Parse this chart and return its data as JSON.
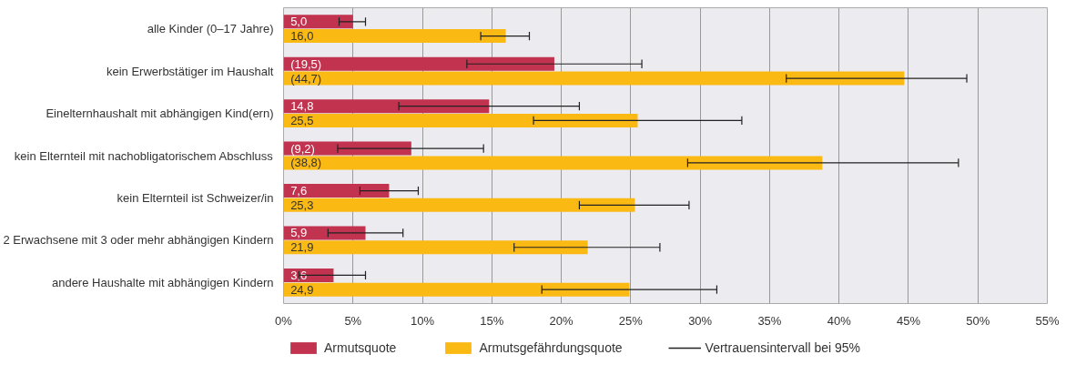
{
  "chart_data": {
    "type": "bar",
    "orientation": "horizontal",
    "categories": [
      "alle Kinder (0–17 Jahre)",
      "kein Erwerbstätiger im Haushalt",
      "Einelternhaushalt mit abhängigen Kind(ern)",
      "kein Elternteil mit nachobligatorischem Abschluss",
      "kein Elternteil ist Schweizer/in",
      "2 Erwachsene mit 3 oder mehr abhängigen Kindern",
      "andere Haushalte mit abhängigen Kindern"
    ],
    "series": [
      {
        "name": "Armutsquote",
        "color": "#c1334f",
        "values": [
          5.0,
          19.5,
          14.8,
          9.2,
          7.6,
          5.9,
          3.6
        ],
        "value_labels": [
          "5,0",
          "(19,5)",
          "14,8",
          "(9,2)",
          "7,6",
          "5,9",
          "3,6"
        ],
        "errors": [
          [
            4.0,
            5.9
          ],
          [
            13.2,
            25.8
          ],
          [
            8.3,
            21.3
          ],
          [
            3.9,
            14.4
          ],
          [
            5.5,
            9.7
          ],
          [
            3.2,
            8.6
          ],
          [
            1.1,
            5.9
          ]
        ]
      },
      {
        "name": "Armutsgefährdungsquote",
        "color": "#fbb914",
        "values": [
          16.0,
          44.7,
          25.5,
          38.8,
          25.3,
          21.9,
          24.9
        ],
        "value_labels": [
          "16,0",
          "(44,7)",
          "25,5",
          "(38,8)",
          "25,3",
          "21,9",
          "24,9"
        ],
        "errors": [
          [
            14.2,
            17.7
          ],
          [
            36.2,
            49.2
          ],
          [
            18.0,
            33.0
          ],
          [
            29.1,
            48.6
          ],
          [
            21.3,
            29.2
          ],
          [
            16.6,
            27.1
          ],
          [
            18.6,
            31.2
          ]
        ]
      }
    ],
    "xlim": [
      0,
      55
    ],
    "xticks": [
      {
        "value": 0,
        "label": "0%"
      },
      {
        "value": 5,
        "label": "5%"
      },
      {
        "value": 10,
        "label": "10%"
      },
      {
        "value": 15,
        "label": "15%"
      },
      {
        "value": 20,
        "label": "20%"
      },
      {
        "value": 25,
        "label": "25%"
      },
      {
        "value": 30,
        "label": "30%"
      },
      {
        "value": 35,
        "label": "35%"
      },
      {
        "value": 40,
        "label": "40%"
      },
      {
        "value": 45,
        "label": "45%"
      },
      {
        "value": 50,
        "label": "50%"
      },
      {
        "value": 55,
        "label": "55%"
      }
    ],
    "grid": "x",
    "legend": "bottom left",
    "annotations": [
      "Vertrauensintervall bei 95%"
    ]
  }
}
